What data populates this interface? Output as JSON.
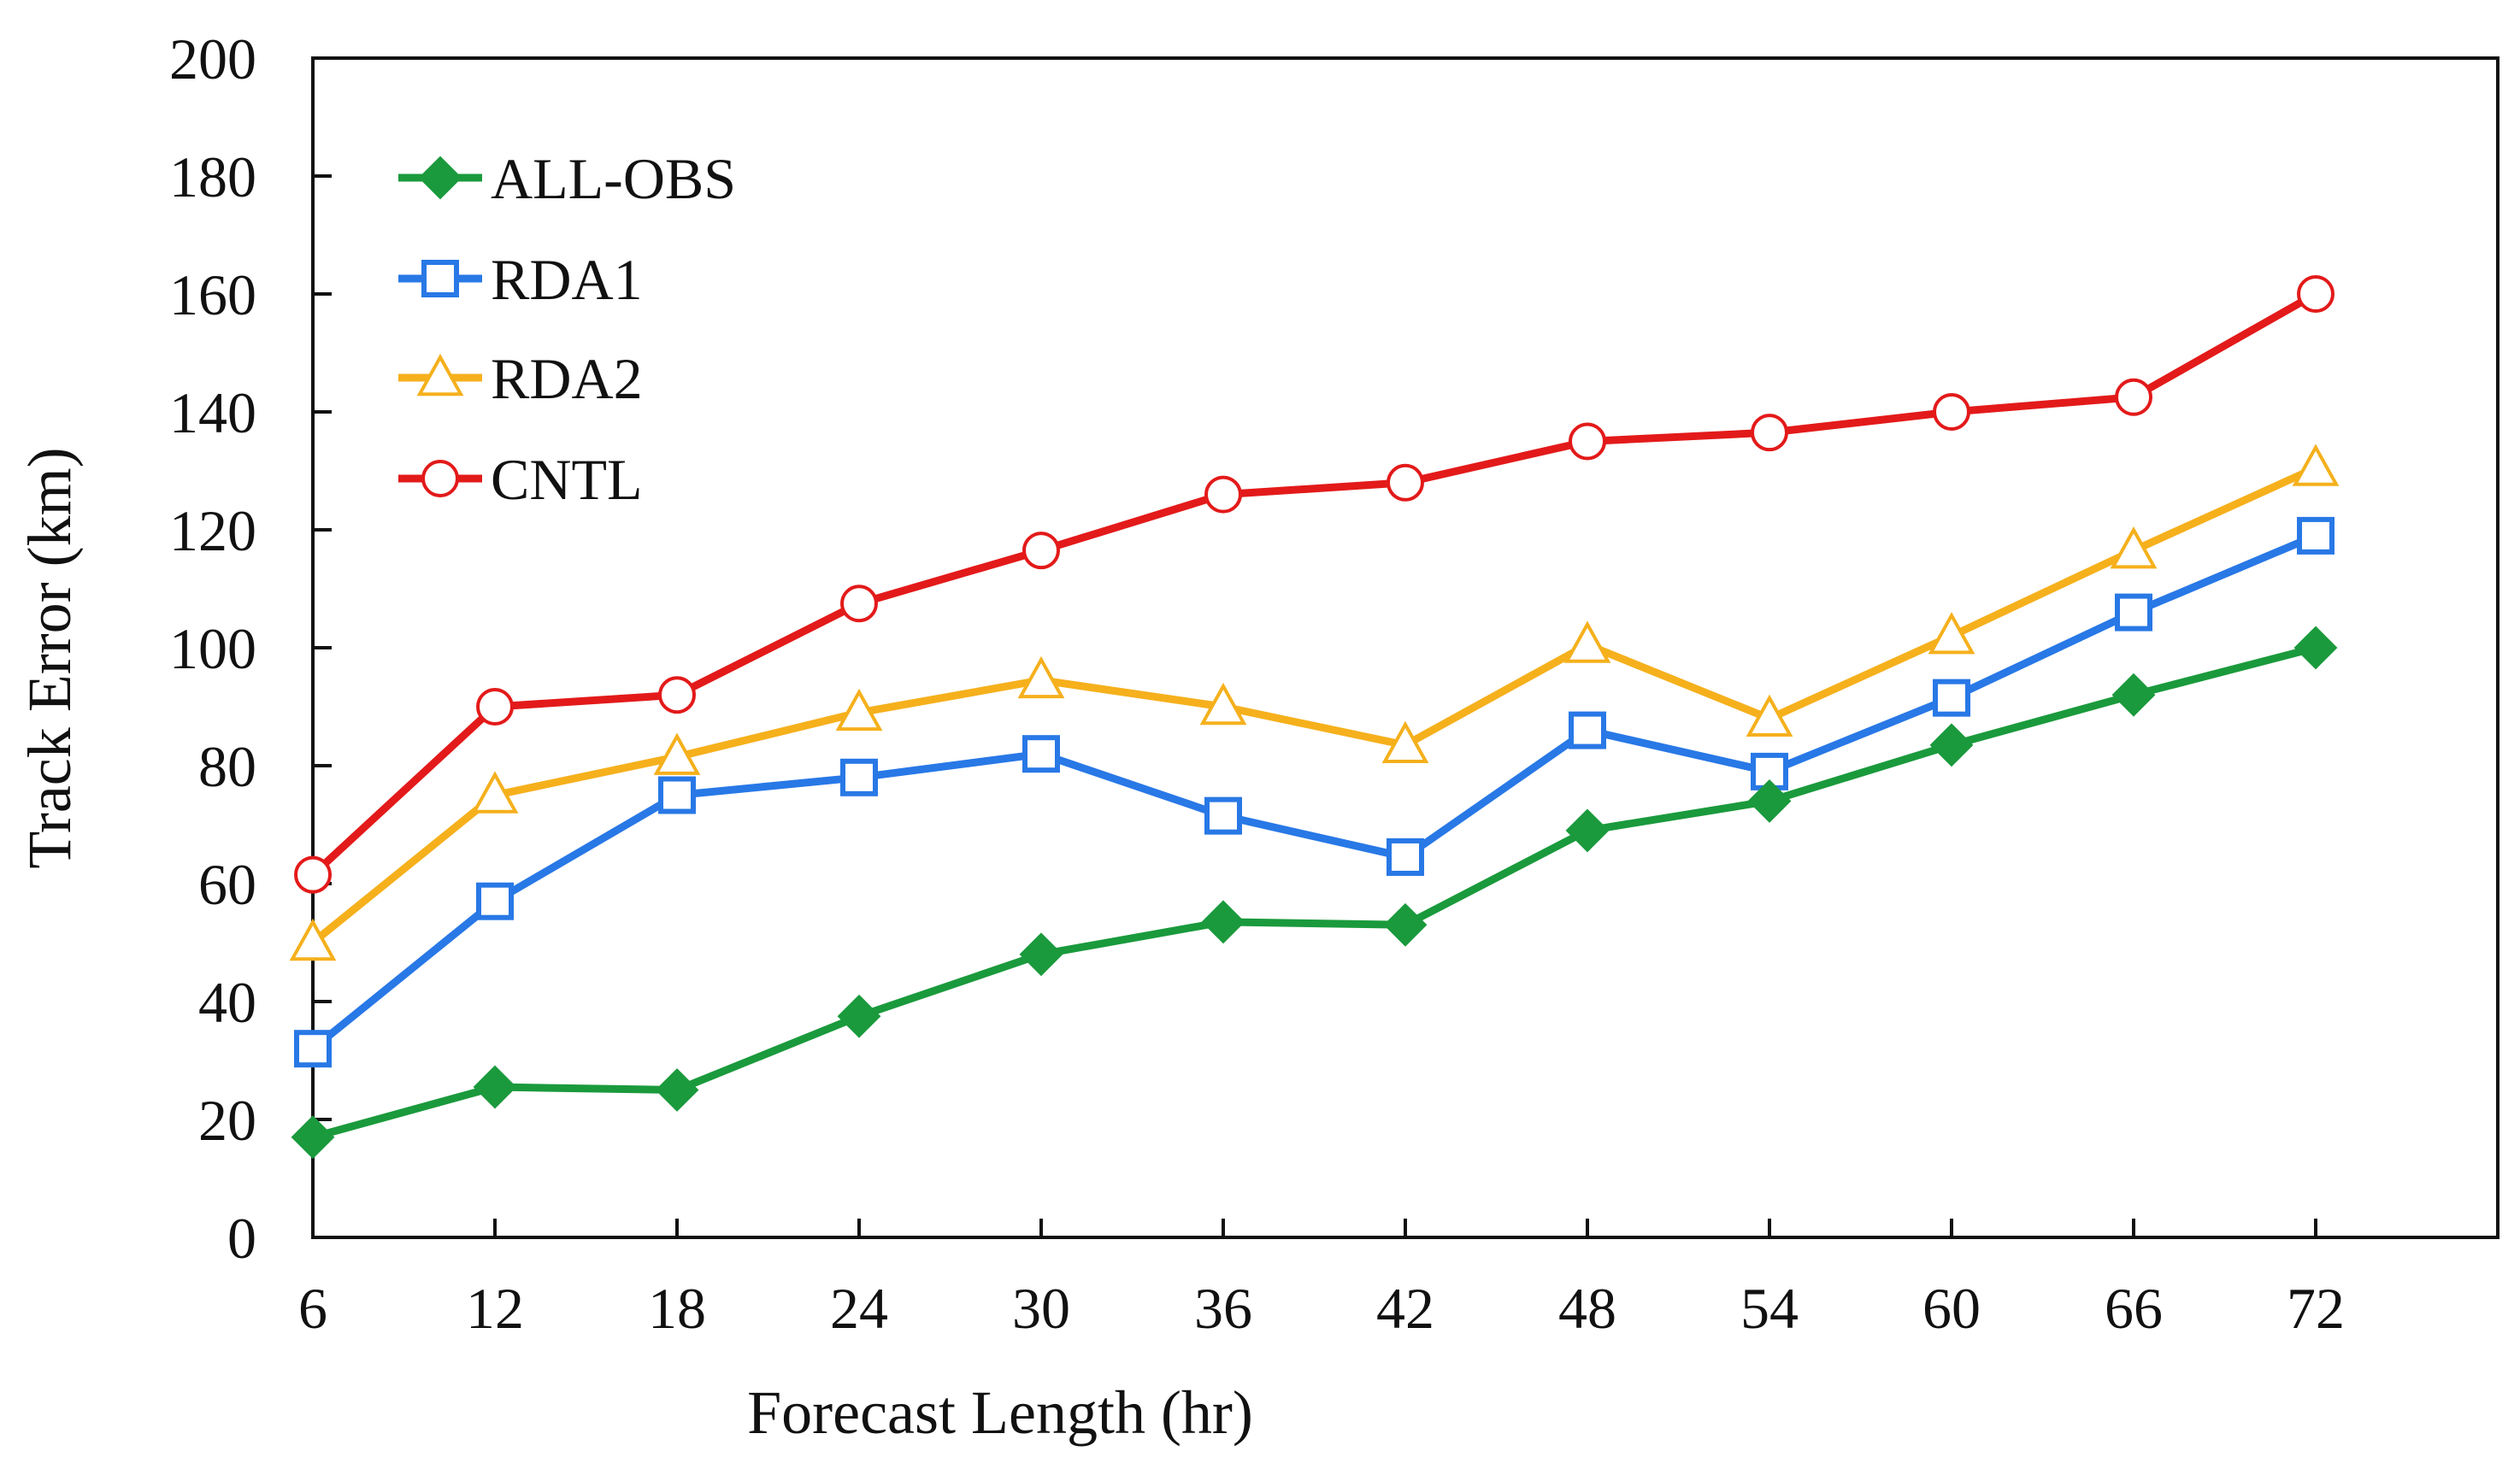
{
  "chart_data": {
    "type": "line",
    "title": "",
    "xlabel": "Forecast Length (hr)",
    "ylabel": "Track Error (km)",
    "x": [
      6,
      12,
      18,
      24,
      30,
      36,
      42,
      48,
      54,
      60,
      66,
      72
    ],
    "xticks": [
      "6",
      "12",
      "18",
      "24",
      "30",
      "36",
      "42",
      "48",
      "54",
      "60",
      "66",
      "72"
    ],
    "ylim": [
      0,
      200
    ],
    "yticks": [
      "0",
      "20",
      "40",
      "60",
      "80",
      "100",
      "120",
      "140",
      "160",
      "180",
      "200"
    ],
    "grid": false,
    "legend_position": "top-left",
    "series": [
      {
        "name": "ALL-OBS",
        "color": "#1a9a3c",
        "marker": "diamond-filled",
        "values": [
          17,
          25.5,
          25,
          37.5,
          48,
          53.5,
          53,
          69,
          74,
          83.5,
          92,
          100
        ]
      },
      {
        "name": "RDA1",
        "color": "#2878e6",
        "marker": "square-open",
        "values": [
          32,
          57,
          75,
          78,
          82,
          71.5,
          64.5,
          86,
          79,
          91.5,
          106,
          119
        ]
      },
      {
        "name": "RDA2",
        "color": "#f5b01c",
        "marker": "triangle-open",
        "values": [
          50,
          75,
          81.5,
          89,
          94.5,
          90,
          83.5,
          100.5,
          88,
          102,
          116.5,
          130.5
        ]
      },
      {
        "name": "CNTL",
        "color": "#e31a1a",
        "marker": "circle-open",
        "values": [
          61.5,
          90,
          92,
          107.5,
          116.5,
          126,
          128,
          135,
          136.5,
          140,
          142.5,
          160
        ]
      }
    ]
  }
}
